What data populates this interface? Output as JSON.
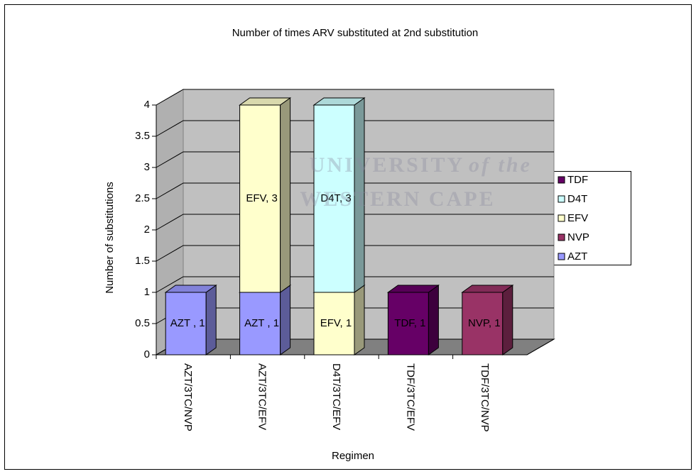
{
  "chart_data": {
    "type": "bar3d_stacked",
    "title": "Number of times ARV substituted at 2nd substitution",
    "x_label": "Regimen",
    "y_label": "Number of substitutions",
    "categories": [
      "AZT/3TC/NVP",
      "AZT/3TC/EFV",
      "D4T/3TC/EFV",
      "TDF/3TC/EFV",
      "TDF/3TC/NVP"
    ],
    "series": [
      {
        "name": "AZT",
        "color": "#9999ff",
        "values": [
          1,
          1,
          null,
          null,
          null
        ],
        "value_labels": [
          "AZT , 1",
          "AZT , 1",
          null,
          null,
          null
        ]
      },
      {
        "name": "NVP",
        "color": "#993366",
        "values": [
          null,
          null,
          null,
          null,
          1
        ],
        "value_labels": [
          null,
          null,
          null,
          null,
          "NVP, 1"
        ]
      },
      {
        "name": "EFV",
        "color": "#ffffcc",
        "values": [
          null,
          3,
          1,
          null,
          null
        ],
        "value_labels": [
          null,
          "EFV, 3",
          "EFV, 1",
          null,
          null
        ]
      },
      {
        "name": "D4T",
        "color": "#ccffff",
        "values": [
          null,
          null,
          3,
          null,
          null
        ],
        "value_labels": [
          null,
          null,
          "D4T, 3",
          null,
          null
        ]
      },
      {
        "name": "TDF",
        "color": "#660066",
        "values": [
          null,
          null,
          null,
          1,
          null
        ],
        "value_labels": [
          null,
          null,
          null,
          "TDF, 1",
          null
        ]
      }
    ],
    "ylim": [
      0,
      4
    ],
    "yticks": [
      0,
      0.5,
      1,
      1.5,
      2,
      2.5,
      3,
      3.5,
      4
    ],
    "grid": true,
    "legend": "right",
    "watermark": [
      "UNIVERSITY",
      "of the",
      "WESTERN CAPE"
    ]
  }
}
